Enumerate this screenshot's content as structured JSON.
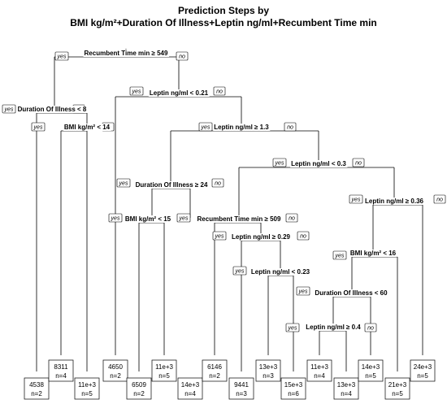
{
  "title_line1": "Prediction Steps by",
  "title_line2": "BMI kg/m²+Duration Of Illness+Leptin ng/ml+Recumbent Time min",
  "branch_yes": "yes",
  "branch_no": "no",
  "splits": [
    "Recumbent Time min ≥ 549",
    "Duration Of Illness < 8",
    "BMI kg/m² < 14",
    "Leptin ng/ml < 0.21",
    "Leptin ng/ml ≥ 1.3",
    "Duration Of Illness ≥ 24",
    "BMI kg/m² < 15",
    "Leptin ng/ml < 0.3",
    "Recumbent Time min ≥ 509",
    "Leptin ng/ml ≥ 0.29",
    "Leptin ng/ml < 0.23",
    "Leptin ng/ml ≥ 0.36",
    "BMI kg/m² < 16",
    "Duration Of Illness < 60",
    "Leptin ng/ml ≥ 0.4"
  ],
  "leaves": [
    {
      "value": "4538",
      "n": "n=2"
    },
    {
      "value": "8311",
      "n": "n=4"
    },
    {
      "value": "11e+3",
      "n": "n=5"
    },
    {
      "value": "4650",
      "n": "n=2"
    },
    {
      "value": "6509",
      "n": "n=2"
    },
    {
      "value": "11e+3",
      "n": "n=5"
    },
    {
      "value": "14e+3",
      "n": "n=4"
    },
    {
      "value": "6146",
      "n": "n=2"
    },
    {
      "value": "9441",
      "n": "n=3"
    },
    {
      "value": "13e+3",
      "n": "n=3"
    },
    {
      "value": "15e+3",
      "n": "n=6"
    },
    {
      "value": "11e+3",
      "n": "n=4"
    },
    {
      "value": "13e+3",
      "n": "n=4"
    },
    {
      "value": "14e+3",
      "n": "n=5"
    },
    {
      "value": "21e+3",
      "n": "n=5"
    },
    {
      "value": "24e+3",
      "n": "n=5"
    }
  ]
}
